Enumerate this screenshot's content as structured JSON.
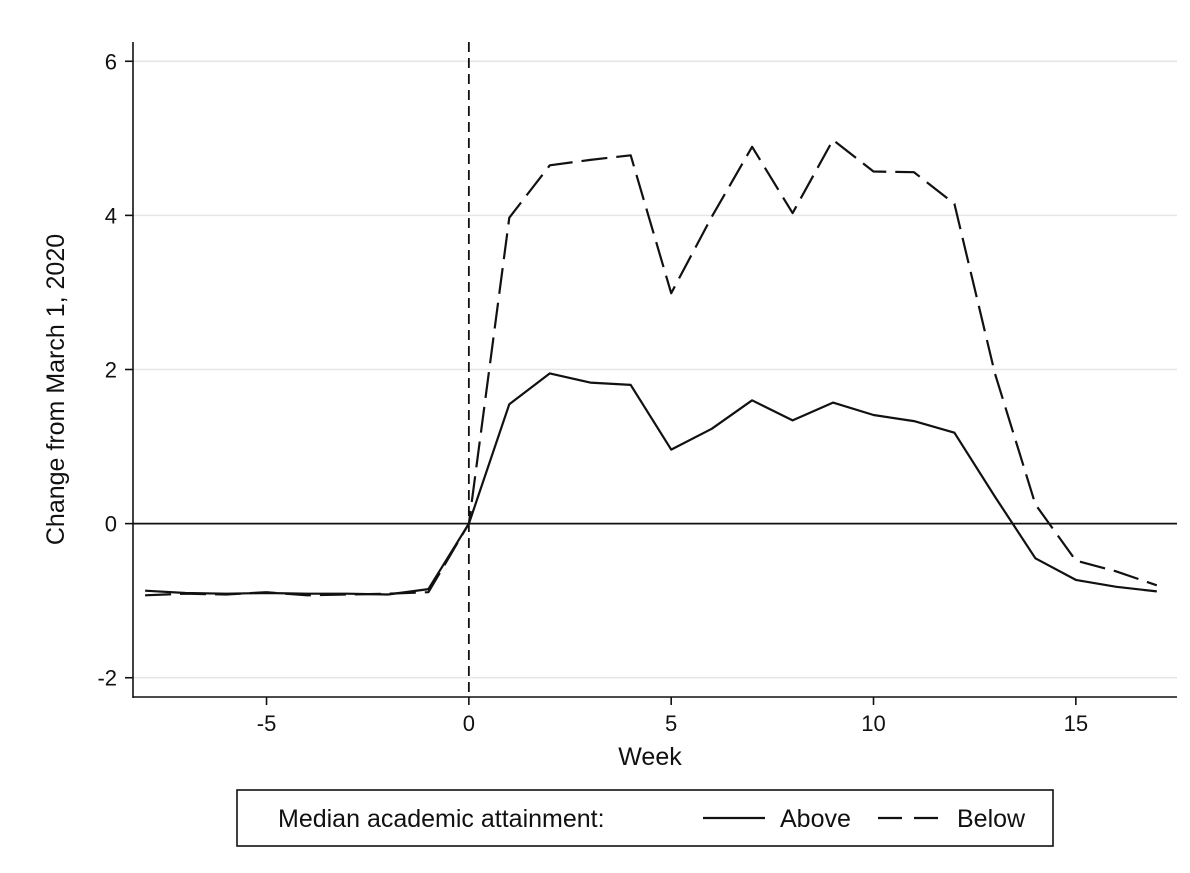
{
  "chart_data": {
    "type": "line",
    "title": "",
    "xlabel": "Week",
    "ylabel": "Change from March 1, 2020",
    "xlim": [
      -8.3,
      17.5
    ],
    "ylim": [
      -2.25,
      6.25
    ],
    "xticks": [
      -5,
      0,
      5,
      10,
      15
    ],
    "yticks": [
      -2,
      0,
      2,
      4,
      6
    ],
    "grid": "horizontal",
    "reference_lines": {
      "y": 0,
      "x": 0
    },
    "legend": {
      "title": "Median academic attainment:",
      "placement": "bottom",
      "entries": [
        "Above",
        "Below"
      ]
    },
    "x": [
      -8,
      -7,
      -6,
      -5,
      -4,
      -3,
      -2,
      -1,
      0,
      1,
      2,
      3,
      4,
      5,
      6,
      7,
      8,
      9,
      10,
      11,
      12,
      13,
      14,
      15,
      16,
      17
    ],
    "series": [
      {
        "name": "Above",
        "style": "solid",
        "values": [
          -0.87,
          -0.9,
          -0.91,
          -0.9,
          -0.91,
          -0.91,
          -0.92,
          -0.85,
          0.0,
          1.55,
          1.95,
          1.83,
          1.8,
          0.96,
          1.23,
          1.6,
          1.34,
          1.57,
          1.41,
          1.33,
          1.18,
          0.35,
          -0.45,
          -0.73,
          -0.82,
          -0.88
        ]
      },
      {
        "name": "Below",
        "style": "dashed",
        "values": [
          -0.93,
          -0.91,
          -0.92,
          -0.89,
          -0.93,
          -0.92,
          -0.91,
          -0.89,
          0.0,
          3.97,
          4.65,
          4.72,
          4.78,
          2.99,
          3.98,
          4.89,
          4.03,
          4.98,
          4.57,
          4.56,
          4.15,
          1.95,
          0.25,
          -0.48,
          -0.62,
          -0.8
        ]
      }
    ],
    "colors": {
      "line": "#111111",
      "grid": "#e6e6e6",
      "axis": "#111111"
    }
  }
}
